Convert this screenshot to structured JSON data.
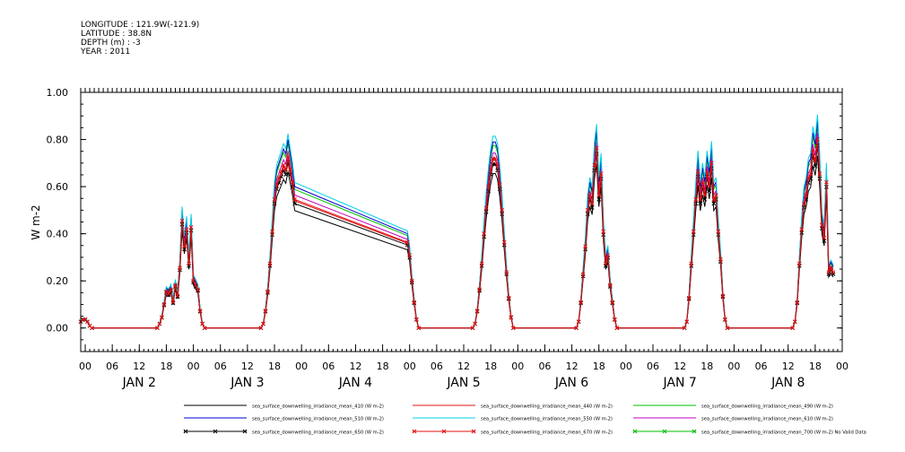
{
  "header": {
    "longitude": "LONGITUDE : 121.9W(-121.9)",
    "latitude": "LATITUDE : 38.8N",
    "depth": "DEPTH (m) : -3",
    "year": "YEAR : 2011"
  },
  "chart_data": {
    "type": "line",
    "title": "",
    "ylabel": "W m-2",
    "xlabel": "",
    "ylim": [
      -0.1,
      1.0
    ],
    "yticks": [
      0.0,
      0.2,
      0.4,
      0.6,
      0.8,
      1.0
    ],
    "ytick_labels": [
      "0.00",
      "0.20",
      "0.40",
      "0.60",
      "0.80",
      "1.00"
    ],
    "x_unit": "hours since JAN 2 00",
    "xlim": [
      -1,
      168
    ],
    "xticks": [
      0,
      6,
      12,
      18,
      24,
      30,
      36,
      42,
      48,
      54,
      60,
      66,
      72,
      78,
      84,
      90,
      96,
      102,
      108,
      114,
      120,
      126,
      132,
      138,
      144,
      150,
      156,
      162,
      168
    ],
    "xtick_labels": [
      "00",
      "06",
      "12",
      "18",
      "00",
      "06",
      "12",
      "18",
      "00",
      "06",
      "12",
      "18",
      "00",
      "06",
      "12",
      "18",
      "00",
      "06",
      "12",
      "18",
      "00",
      "06",
      "12",
      "18",
      "00",
      "06",
      "12",
      "18",
      "00"
    ],
    "day_labels": [
      {
        "text": "JAN  2",
        "x": 12
      },
      {
        "text": "JAN  3",
        "x": 36
      },
      {
        "text": "JAN  4",
        "x": 60
      },
      {
        "text": "JAN  5",
        "x": 84
      },
      {
        "text": "JAN  6",
        "x": 108
      },
      {
        "text": "JAN  7",
        "x": 132
      },
      {
        "text": "JAN  8",
        "x": 156
      }
    ],
    "grid": false,
    "legend_position": "bottom",
    "series": [
      {
        "name": "sea_surface_downwelling_irradiance_mean_410 (W m-2)",
        "color": "#000000",
        "marker": "none",
        "peak_scale": 0.83
      },
      {
        "name": "sea_surface_downwelling_irradiance_mean_440 (W m-2)",
        "color": "#e01010",
        "marker": "none",
        "peak_scale": 0.9
      },
      {
        "name": "sea_surface_downwelling_irradiance_mean_490 (W m-2)",
        "color": "#00c000",
        "marker": "none",
        "peak_scale": 0.98
      },
      {
        "name": "sea_surface_downwelling_irradiance_mean_510 (W m-2)",
        "color": "#0000d0",
        "marker": "none",
        "peak_scale": 1.0
      },
      {
        "name": "sea_surface_downwelling_irradiance_mean_550 (W m-2)",
        "color": "#00d0e0",
        "marker": "none",
        "peak_scale": 1.03
      },
      {
        "name": "sea_surface_downwelling_irradiance_mean_610 (W m-2)",
        "color": "#c000c0",
        "marker": "none",
        "peak_scale": 0.94
      },
      {
        "name": "sea_surface_downwelling_irradiance_mean_650 (W m-2)",
        "color": "#000000",
        "marker": "x",
        "peak_scale": 0.88
      },
      {
        "name": "sea_surface_downwelling_irradiance_mean_670 (W m-2)",
        "color": "#e01010",
        "marker": "x",
        "peak_scale": 0.91
      },
      {
        "name": "sea_surface_downwelling_irradiance_mean_700 (W m-2) No Valid Data",
        "color": "#00c000",
        "marker": "x",
        "peak_scale": 0
      }
    ],
    "base_curve": [
      [
        -1,
        0.03
      ],
      [
        -0.5,
        0.04
      ],
      [
        0,
        0.04
      ],
      [
        0.5,
        0.03
      ],
      [
        1,
        0.01
      ],
      [
        1.5,
        0
      ],
      [
        16,
        0
      ],
      [
        16.5,
        0.02
      ],
      [
        17,
        0.05
      ],
      [
        17.5,
        0.11
      ],
      [
        18,
        0.17
      ],
      [
        18.5,
        0.16
      ],
      [
        19,
        0.18
      ],
      [
        19.5,
        0.12
      ],
      [
        20,
        0.2
      ],
      [
        20.5,
        0.15
      ],
      [
        21,
        0.28
      ],
      [
        21.5,
        0.5
      ],
      [
        22,
        0.38
      ],
      [
        22.5,
        0.46
      ],
      [
        23,
        0.3
      ],
      [
        23.5,
        0.47
      ],
      [
        24,
        0.22
      ],
      [
        24.5,
        0.2
      ],
      [
        25,
        0.18
      ],
      [
        25.5,
        0.08
      ],
      [
        26,
        0.02
      ],
      [
        26.5,
        0
      ],
      [
        39,
        0
      ],
      [
        39.5,
        0.02
      ],
      [
        40,
        0.08
      ],
      [
        40.5,
        0.17
      ],
      [
        41,
        0.3
      ],
      [
        41.5,
        0.45
      ],
      [
        42,
        0.6
      ],
      [
        42.5,
        0.67
      ],
      [
        43,
        0.7
      ],
      [
        43.5,
        0.73
      ],
      [
        44,
        0.76
      ],
      [
        44.5,
        0.74
      ],
      [
        45,
        0.8
      ],
      [
        45.5,
        0.74
      ],
      [
        46,
        0.68
      ],
      [
        46.5,
        0.6
      ],
      [
        71.5,
        0.4
      ],
      [
        72,
        0.34
      ],
      [
        72.5,
        0.22
      ],
      [
        73,
        0.12
      ],
      [
        73.5,
        0.04
      ],
      [
        74,
        0
      ],
      [
        86,
        0
      ],
      [
        86.5,
        0.02
      ],
      [
        87,
        0.08
      ],
      [
        87.5,
        0.18
      ],
      [
        88,
        0.3
      ],
      [
        88.5,
        0.44
      ],
      [
        89,
        0.56
      ],
      [
        89.5,
        0.66
      ],
      [
        90,
        0.74
      ],
      [
        90.5,
        0.79
      ],
      [
        91,
        0.79
      ],
      [
        91.5,
        0.76
      ],
      [
        92,
        0.67
      ],
      [
        92.5,
        0.55
      ],
      [
        93,
        0.4
      ],
      [
        93.5,
        0.26
      ],
      [
        94,
        0.14
      ],
      [
        94.5,
        0.05
      ],
      [
        95,
        0
      ],
      [
        109,
        0
      ],
      [
        109.5,
        0.03
      ],
      [
        110,
        0.12
      ],
      [
        110.5,
        0.25
      ],
      [
        111,
        0.38
      ],
      [
        111.5,
        0.55
      ],
      [
        112,
        0.62
      ],
      [
        112.5,
        0.58
      ],
      [
        113,
        0.76
      ],
      [
        113.5,
        0.84
      ],
      [
        114,
        0.62
      ],
      [
        114.5,
        0.72
      ],
      [
        115,
        0.45
      ],
      [
        115.5,
        0.3
      ],
      [
        116,
        0.34
      ],
      [
        116.5,
        0.2
      ],
      [
        117,
        0.12
      ],
      [
        117.5,
        0.04
      ],
      [
        118,
        0
      ],
      [
        133,
        0
      ],
      [
        133.5,
        0.03
      ],
      [
        134,
        0.14
      ],
      [
        134.5,
        0.3
      ],
      [
        135,
        0.45
      ],
      [
        135.5,
        0.6
      ],
      [
        136,
        0.73
      ],
      [
        136.5,
        0.6
      ],
      [
        137,
        0.68
      ],
      [
        137.5,
        0.62
      ],
      [
        138,
        0.73
      ],
      [
        138.5,
        0.66
      ],
      [
        139,
        0.77
      ],
      [
        139.5,
        0.6
      ],
      [
        140,
        0.62
      ],
      [
        140.5,
        0.45
      ],
      [
        141,
        0.32
      ],
      [
        141.5,
        0.15
      ],
      [
        142,
        0.04
      ],
      [
        142.5,
        0
      ],
      [
        157,
        0
      ],
      [
        157.5,
        0.03
      ],
      [
        158,
        0.12
      ],
      [
        158.5,
        0.3
      ],
      [
        159,
        0.46
      ],
      [
        159.5,
        0.58
      ],
      [
        160,
        0.62
      ],
      [
        160.5,
        0.7
      ],
      [
        161,
        0.72
      ],
      [
        161.5,
        0.83
      ],
      [
        162,
        0.78
      ],
      [
        162.5,
        0.88
      ],
      [
        163,
        0.72
      ],
      [
        163.5,
        0.48
      ],
      [
        164,
        0.42
      ],
      [
        164.5,
        0.68
      ],
      [
        165,
        0.26
      ],
      [
        165.5,
        0.28
      ],
      [
        166,
        0.26
      ]
    ]
  }
}
